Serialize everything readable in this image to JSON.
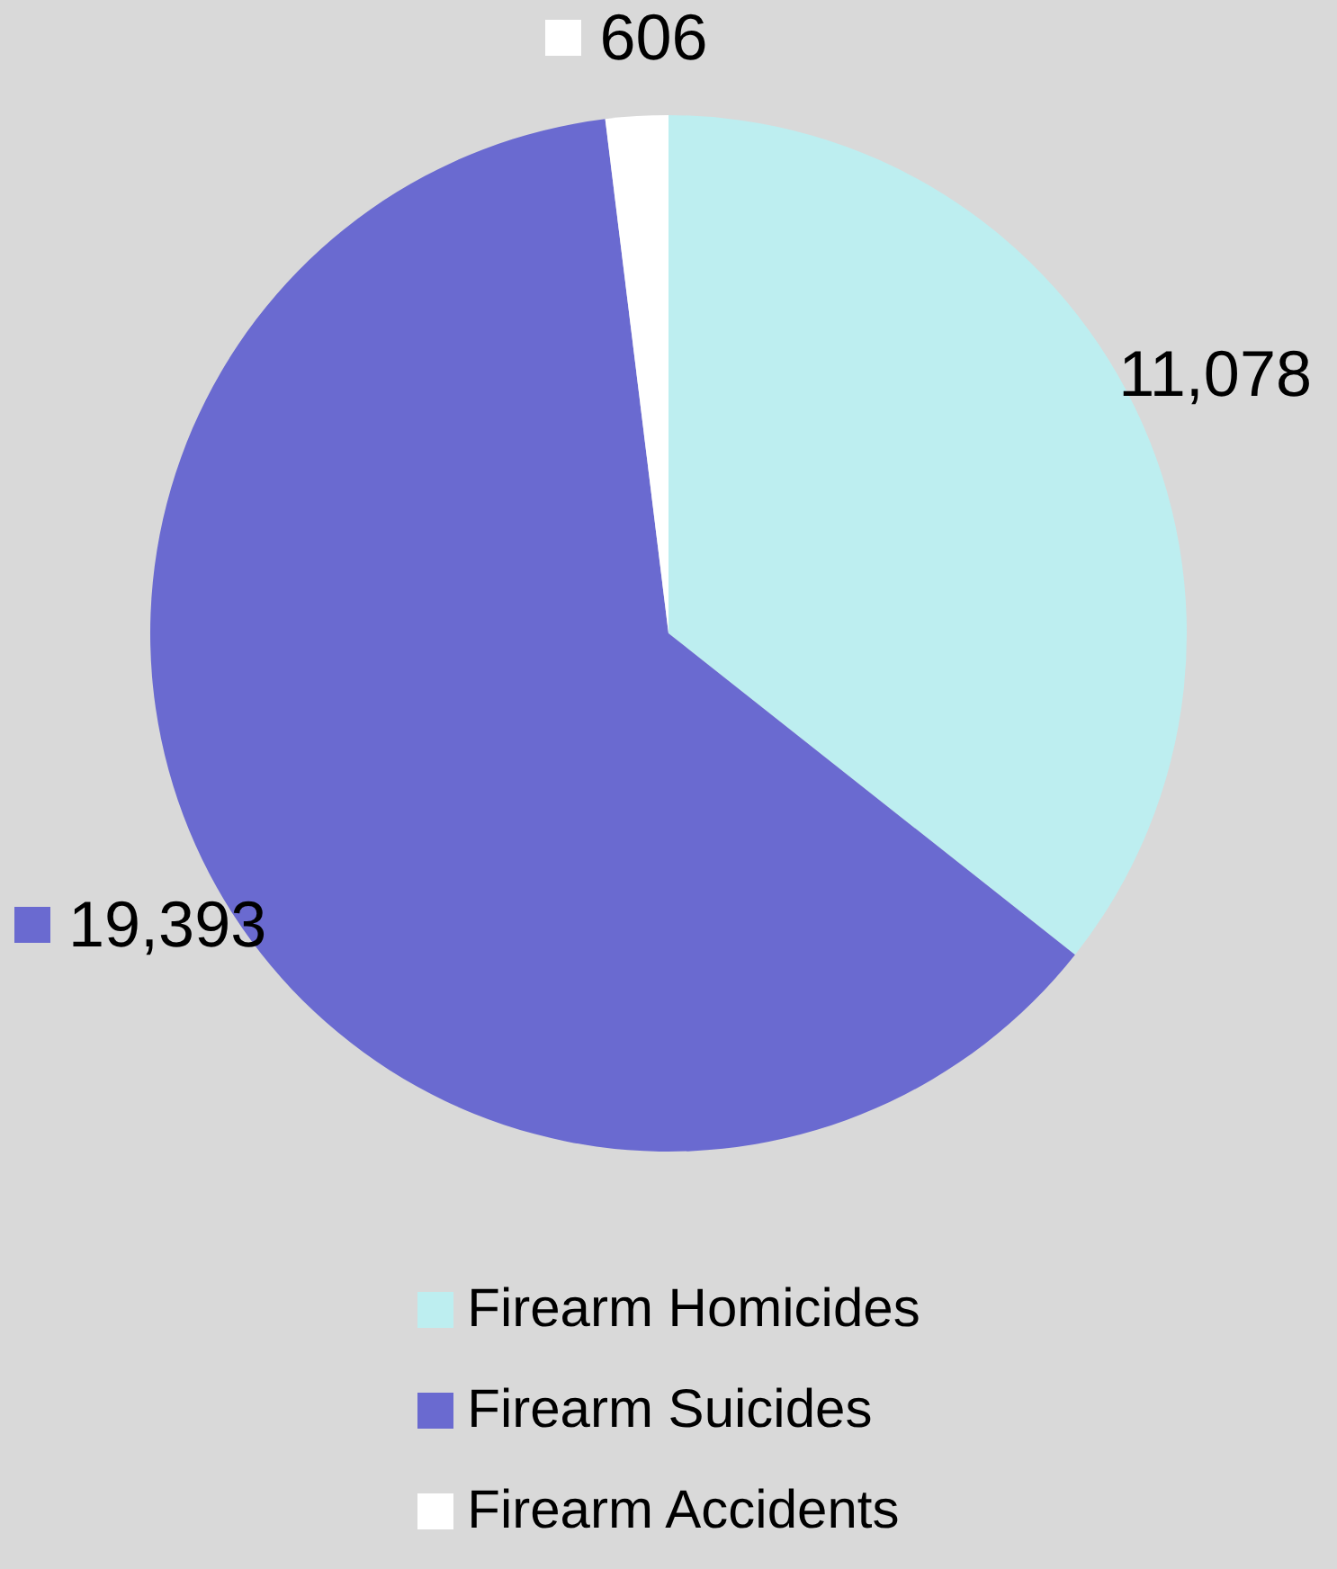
{
  "chart_data": {
    "type": "pie",
    "categories": [
      "Firearm Homicides",
      "Firearm Suicides",
      "Firearm Accidents"
    ],
    "values": [
      11078,
      19393,
      606
    ],
    "value_labels": [
      "11,078",
      "19,393",
      "606"
    ],
    "colors": [
      "#bdeef0",
      "#6a6ad0",
      "#ffffff"
    ],
    "legend": "bottom"
  }
}
